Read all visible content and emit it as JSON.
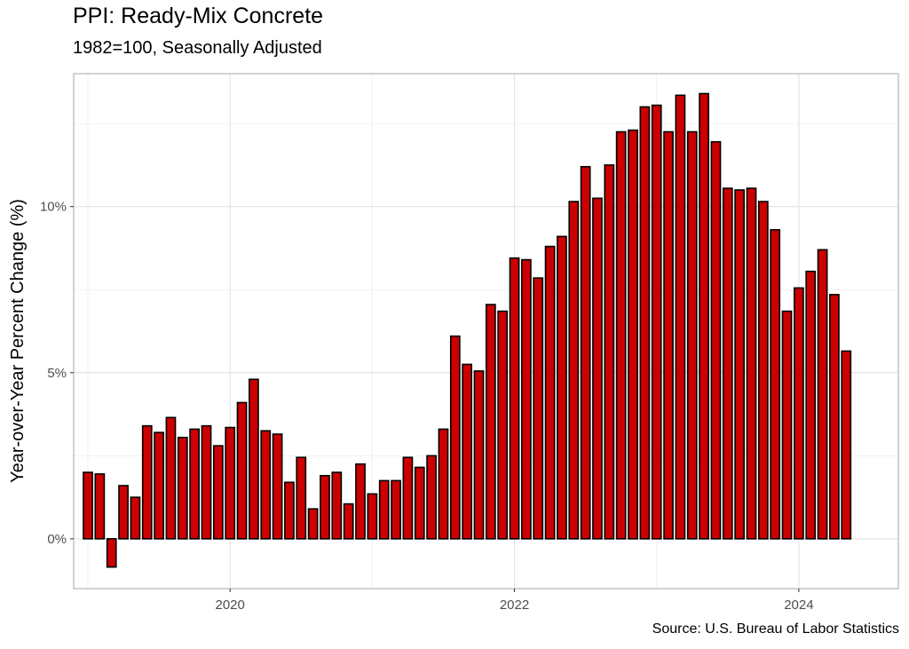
{
  "chart_data": {
    "type": "bar",
    "title": "PPI: Ready-Mix Concrete",
    "subtitle": "1982=100, Seasonally Adjusted",
    "caption": "Source: U.S. Bureau of Labor Statistics",
    "xlabel": "",
    "ylabel": "Year-over-Year Percent Change (%)",
    "x_start": "2019-01",
    "x_end": "2024-05",
    "xlim": [
      2018.9,
      2024.7
    ],
    "ylim": [
      -1.5,
      14.0
    ],
    "x_ticks": [
      {
        "value": 2020,
        "label": "2020"
      },
      {
        "value": 2022,
        "label": "2022"
      },
      {
        "value": 2024,
        "label": "2024"
      }
    ],
    "y_ticks": [
      {
        "value": 0,
        "label": "0%"
      },
      {
        "value": 5,
        "label": "5%"
      },
      {
        "value": 10,
        "label": "10%"
      }
    ],
    "grid": true,
    "bar_color": "#cc0000",
    "bar_edge_color": "#000000",
    "series": [
      {
        "values": [
          2.0,
          1.95,
          -0.85,
          1.6,
          1.25,
          3.4,
          3.2,
          3.65,
          3.05,
          3.3,
          3.4,
          2.8,
          3.35,
          4.1,
          4.8,
          3.25,
          3.15,
          1.7,
          2.45,
          0.9,
          1.9,
          2.0,
          1.05,
          2.25,
          1.35,
          1.75,
          1.75,
          2.45,
          2.15,
          2.5,
          3.3,
          6.1,
          5.25,
          5.05,
          7.05,
          6.85,
          8.45,
          8.4,
          7.85,
          8.8,
          9.1,
          10.15,
          11.2,
          10.25,
          11.25,
          12.25,
          12.3,
          13.0,
          13.05,
          12.25,
          13.35,
          12.25,
          13.4,
          11.95,
          10.55,
          10.5,
          10.55,
          10.15,
          9.3,
          6.85,
          7.55,
          8.05,
          8.7,
          7.35,
          5.65
        ]
      }
    ]
  }
}
